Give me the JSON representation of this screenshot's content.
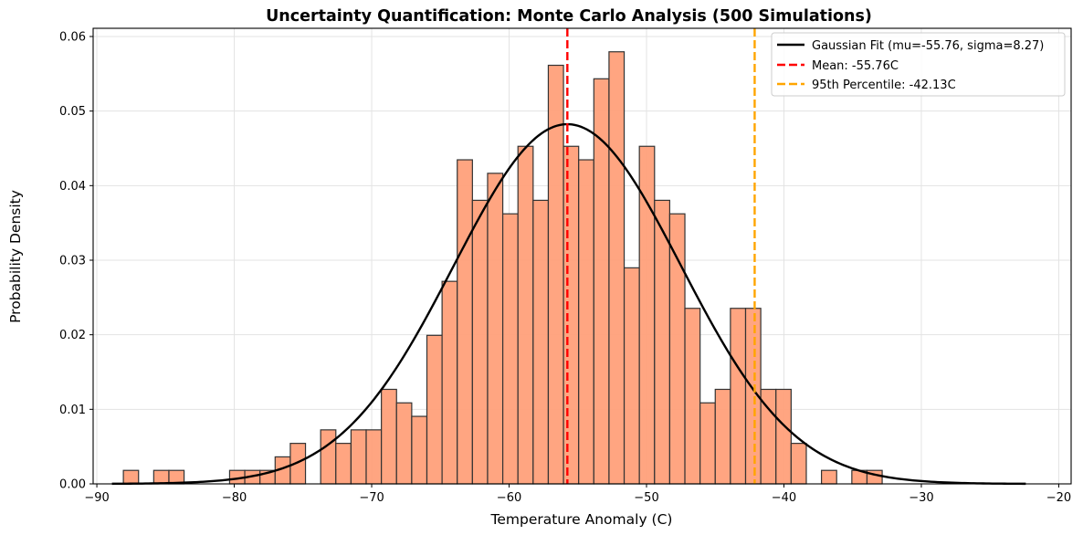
{
  "chart_data": {
    "type": "bar",
    "subtype": "histogram",
    "title": "Uncertainty Quantification: Monte Carlo Analysis (500 Simulations)",
    "xlabel": "Temperature Anomaly (C)",
    "ylabel": "Probability Density",
    "xlim": [
      -90.27,
      -19.1
    ],
    "ylim": [
      0,
      0.0611
    ],
    "grid": true,
    "x_ticks": [
      -90,
      -80,
      -70,
      -60,
      -50,
      -40,
      -30,
      -20
    ],
    "x_tick_labels": [
      "−90",
      "−80",
      "−70",
      "−60",
      "−50",
      "−40",
      "−30",
      "−20"
    ],
    "y_ticks": [
      0.0,
      0.01,
      0.02,
      0.03,
      0.04,
      0.05,
      0.06
    ],
    "y_tick_labels": [
      "0.00",
      "0.01",
      "0.02",
      "0.03",
      "0.04",
      "0.05",
      "0.06"
    ],
    "n_samples": 500,
    "bin_start": -88.07,
    "bin_width": 1.1044,
    "bin_counts": [
      1,
      0,
      1,
      1,
      0,
      0,
      0,
      1,
      1,
      1,
      2,
      3,
      0,
      4,
      3,
      4,
      4,
      7,
      6,
      5,
      11,
      15,
      24,
      21,
      23,
      20,
      25,
      21,
      31,
      25,
      24,
      30,
      32,
      16,
      25,
      21,
      20,
      13,
      6,
      7,
      13,
      13,
      7,
      7,
      3,
      0,
      1,
      0,
      1,
      1
    ],
    "bar_color": "#FFA07A",
    "bar_edge_color": "#333333",
    "gaussian": {
      "mu": -55.76,
      "sigma": 8.27,
      "x_range": [
        -88.9,
        -22.4
      ],
      "color": "#000000"
    },
    "mean_line": {
      "x": -55.76,
      "color": "#FF0000"
    },
    "percentile_line": {
      "x": -42.13,
      "color": "#FFA500"
    },
    "legend": {
      "position": "top-right",
      "entries": [
        {
          "label": "Gaussian Fit (mu=-55.76, sigma=8.27)",
          "style": "solid",
          "color": "#000000"
        },
        {
          "label": "Mean: -55.76C",
          "style": "dashed",
          "color": "#FF0000"
        },
        {
          "label": "95th Percentile: -42.13C",
          "style": "dashed",
          "color": "#FFA500"
        }
      ]
    }
  }
}
